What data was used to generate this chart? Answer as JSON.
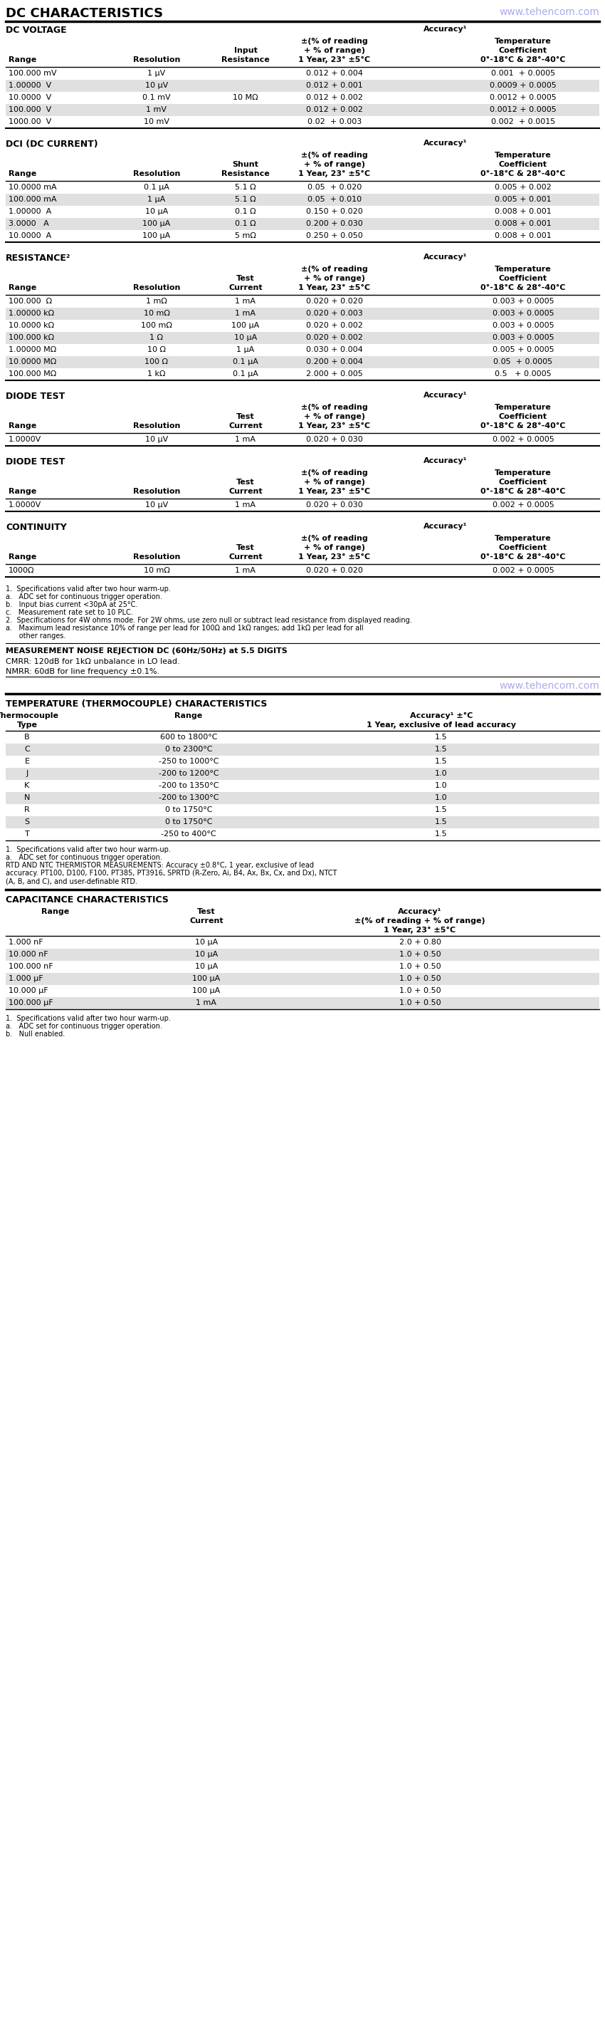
{
  "title": "DC CHARACTERISTICS",
  "website": "www.tehencom.com",
  "bg_color": "#ffffff",
  "row_alt_bg": "#e0e0e0",
  "sections": [
    {
      "name": "DC VOLTAGE",
      "col3_label_line1": "Input",
      "col3_label_line2": "Resistance",
      "rows": [
        [
          "100.000 mV",
          "1 μV",
          "",
          "0.012 + 0.004",
          "0.001  + 0.0005"
        ],
        [
          "1.00000  V",
          "10 μV",
          "",
          "0.012 + 0.001",
          "0.0009 + 0.0005"
        ],
        [
          "10.0000  V",
          "0.1 mV",
          "10 MΩ",
          "0.012 + 0.002",
          "0.0012 + 0.0005"
        ],
        [
          "100.000  V",
          "1 mV",
          "",
          "0.012 + 0.002",
          "0.0012 + 0.0005"
        ],
        [
          "1000.00  V",
          "10 mV",
          "",
          "0.02  + 0.003",
          "0.002  + 0.0015"
        ]
      ],
      "alt_rows": [
        1,
        3
      ]
    },
    {
      "name": "DCI (DC CURRENT)",
      "col3_label_line1": "Shunt",
      "col3_label_line2": "Resistance",
      "rows": [
        [
          "10.0000 mA",
          "0.1 μA",
          "5.1 Ω",
          "0.05  + 0.020",
          "0.005 + 0.002"
        ],
        [
          "100.000 mA",
          "1 μA",
          "5.1 Ω",
          "0.05  + 0.010",
          "0.005 + 0.001"
        ],
        [
          "1.00000  A",
          "10 μA",
          "0.1 Ω",
          "0.150 + 0.020",
          "0.008 + 0.001"
        ],
        [
          "3.0000   A",
          "100 μA",
          "0.1 Ω",
          "0.200 + 0.030",
          "0.008 + 0.001"
        ],
        [
          "10.0000  A",
          "100 μA",
          "5 mΩ",
          "0.250 + 0.050",
          "0.008 + 0.001"
        ]
      ],
      "alt_rows": [
        1,
        3
      ]
    },
    {
      "name": "RESISTANCE²",
      "col3_label_line1": "Test",
      "col3_label_line2": "Current",
      "rows": [
        [
          "100.000  Ω",
          "1 mΩ",
          "1 mA",
          "0.020 + 0.020",
          "0.003 + 0.0005"
        ],
        [
          "1.00000 kΩ",
          "10 mΩ",
          "1 mA",
          "0.020 + 0.003",
          "0.003 + 0.0005"
        ],
        [
          "10.0000 kΩ",
          "100 mΩ",
          "100 μA",
          "0.020 + 0.002",
          "0.003 + 0.0005"
        ],
        [
          "100.000 kΩ",
          "1 Ω",
          "10 μA",
          "0.020 + 0.002",
          "0.003 + 0.0005"
        ],
        [
          "1.00000 MΩ",
          "10 Ω",
          "1 μA",
          "0.030 + 0.004",
          "0.005 + 0.0005"
        ],
        [
          "10.0000 MΩ",
          "100 Ω",
          "0.1 μA",
          "0.200 + 0.004",
          "0.05  + 0.0005"
        ],
        [
          "100.000 MΩ",
          "1 kΩ",
          "0.1 μA",
          "2.000 + 0.005",
          "0.5   + 0.0005"
        ]
      ],
      "alt_rows": [
        1,
        3,
        5
      ]
    },
    {
      "name": "DIODE TEST",
      "col3_label_line1": "Test",
      "col3_label_line2": "Current",
      "rows": [
        [
          "1.0000V",
          "10 μV",
          "1 mA",
          "0.020 + 0.030",
          "0.002 + 0.0005"
        ]
      ],
      "alt_rows": []
    },
    {
      "name": "DIODE TEST",
      "col3_label_line1": "Test",
      "col3_label_line2": "Current",
      "rows": [
        [
          "1.0000V",
          "10 μV",
          "1 mA",
          "0.020 + 0.030",
          "0.002 + 0.0005"
        ]
      ],
      "alt_rows": []
    },
    {
      "name": "CONTINUITY",
      "col3_label_line1": "Test",
      "col3_label_line2": "Current",
      "rows": [
        [
          "1000Ω",
          "10 mΩ",
          "1 mA",
          "0.020 + 0.020",
          "0.002 + 0.0005"
        ]
      ],
      "alt_rows": []
    }
  ],
  "footnotes_dc": [
    "1.  Specifications valid after two hour warm-up.",
    "a.   ADC set for continuous trigger operation.",
    "b.   Input bias current <30pA at 25°C.",
    "c.   Measurement rate set to 10 PLC.",
    "2.  Specifications for 4W ohms mode. For 2W ohms, use zero null or subtract lead resistance from displayed reading.",
    "a.   Maximum lead resistance 10% of range per lead for 100Ω and 1kΩ ranges; add 1kΩ per lead for all",
    "      other ranges."
  ],
  "cmrr_title": "MEASUREMENT NOISE REJECTION DC (60Hz/50Hz) at 5.5 DIGITS",
  "cmrr_line1": "CMRR: 120dB for 1kΩ unbalance in LO lead.",
  "cmrr_line2": "NMRR: 60dB for line frequency ±0.1%.",
  "website2": "www.tehencom.com",
  "temp_title": "TEMPERATURE (THERMOCOUPLE) CHARACTERISTICS",
  "temp_rows": [
    [
      "B",
      "600 to 1800°C",
      "1.5"
    ],
    [
      "C",
      "0 to 2300°C",
      "1.5"
    ],
    [
      "E",
      "-250 to 1000°C",
      "1.5"
    ],
    [
      "J",
      "-200 to 1200°C",
      "1.0"
    ],
    [
      "K",
      "-200 to 1350°C",
      "1.0"
    ],
    [
      "N",
      "-200 to 1300°C",
      "1.0"
    ],
    [
      "R",
      "0 to 1750°C",
      "1.5"
    ],
    [
      "S",
      "0 to 1750°C",
      "1.5"
    ],
    [
      "T",
      "-250 to 400°C",
      "1.5"
    ]
  ],
  "temp_alt_rows": [
    1,
    3,
    5,
    7
  ],
  "temp_footnote1": "1.  Specifications valid after two hour warm-up.",
  "temp_footnote2": "a.   ADC set for continuous trigger operation.",
  "temp_footnote3": "RTD AND NTC THERMISTOR MEASUREMENTS: Accuracy ±0.8°C, 1 year, exclusive of lead",
  "temp_footnote4": "accuracy. PT100, D100, F100, PT385, PT3916, SPRTD (R-Zero, Ai, B4, Ax, Bx, Cx, and Dx), NTCT",
  "temp_footnote5": "(A, B, and C), and user-definable RTD.",
  "cap_title": "CAPACITANCE CHARACTERISTICS",
  "cap_rows": [
    [
      "1.000 nF",
      "10 μA",
      "2.0 + 0.80"
    ],
    [
      "10.000 nF",
      "10 μA",
      "1.0 + 0.50"
    ],
    [
      "100.000 nF",
      "10 μA",
      "1.0 + 0.50"
    ],
    [
      "1.000 μF",
      "100 μA",
      "1.0 + 0.50"
    ],
    [
      "10.000 μF",
      "100 μA",
      "1.0 + 0.50"
    ],
    [
      "100.000 μF",
      "1 mA",
      "1.0 + 0.50"
    ]
  ],
  "cap_alt_rows": [
    1,
    3,
    5
  ],
  "cap_footnote1": "1.  Specifications valid after two hour warm-up.",
  "cap_footnote2": "a.   ADC set for continuous trigger operation.",
  "cap_footnote3": "b.   Null enabled."
}
